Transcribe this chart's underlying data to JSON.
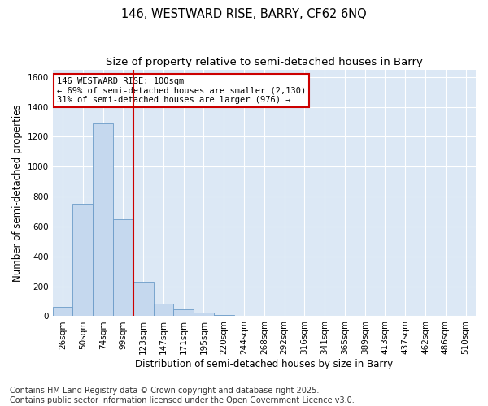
{
  "title_line1": "146, WESTWARD RISE, BARRY, CF62 6NQ",
  "title_line2": "Size of property relative to semi-detached houses in Barry",
  "xlabel": "Distribution of semi-detached houses by size in Barry",
  "ylabel": "Number of semi-detached properties",
  "annotation_line1": "146 WESTWARD RISE: 100sqm",
  "annotation_line2": "← 69% of semi-detached houses are smaller (2,130)",
  "annotation_line3": "31% of semi-detached houses are larger (976) →",
  "footer_line1": "Contains HM Land Registry data © Crown copyright and database right 2025.",
  "footer_line2": "Contains public sector information licensed under the Open Government Licence v3.0.",
  "categories": [
    "26sqm",
    "50sqm",
    "74sqm",
    "99sqm",
    "123sqm",
    "147sqm",
    "171sqm",
    "195sqm",
    "220sqm",
    "244sqm",
    "268sqm",
    "292sqm",
    "316sqm",
    "341sqm",
    "365sqm",
    "389sqm",
    "413sqm",
    "437sqm",
    "462sqm",
    "486sqm",
    "510sqm"
  ],
  "values": [
    60,
    750,
    1290,
    650,
    230,
    85,
    45,
    25,
    10,
    0,
    0,
    0,
    0,
    0,
    0,
    0,
    0,
    0,
    0,
    0,
    0
  ],
  "bar_color": "#c5d8ee",
  "bar_edge_color": "#6b9bc8",
  "red_line_index": 3.5,
  "red_line_color": "#cc0000",
  "annotation_box_color": "#cc0000",
  "ylim": [
    0,
    1650
  ],
  "yticks": [
    0,
    200,
    400,
    600,
    800,
    1000,
    1200,
    1400,
    1600
  ],
  "figure_bg": "#ffffff",
  "plot_bg_color": "#dce8f5",
  "grid_color": "#ffffff",
  "title_fontsize": 10.5,
  "subtitle_fontsize": 9.5,
  "axis_label_fontsize": 8.5,
  "tick_fontsize": 7.5,
  "footer_fontsize": 7
}
